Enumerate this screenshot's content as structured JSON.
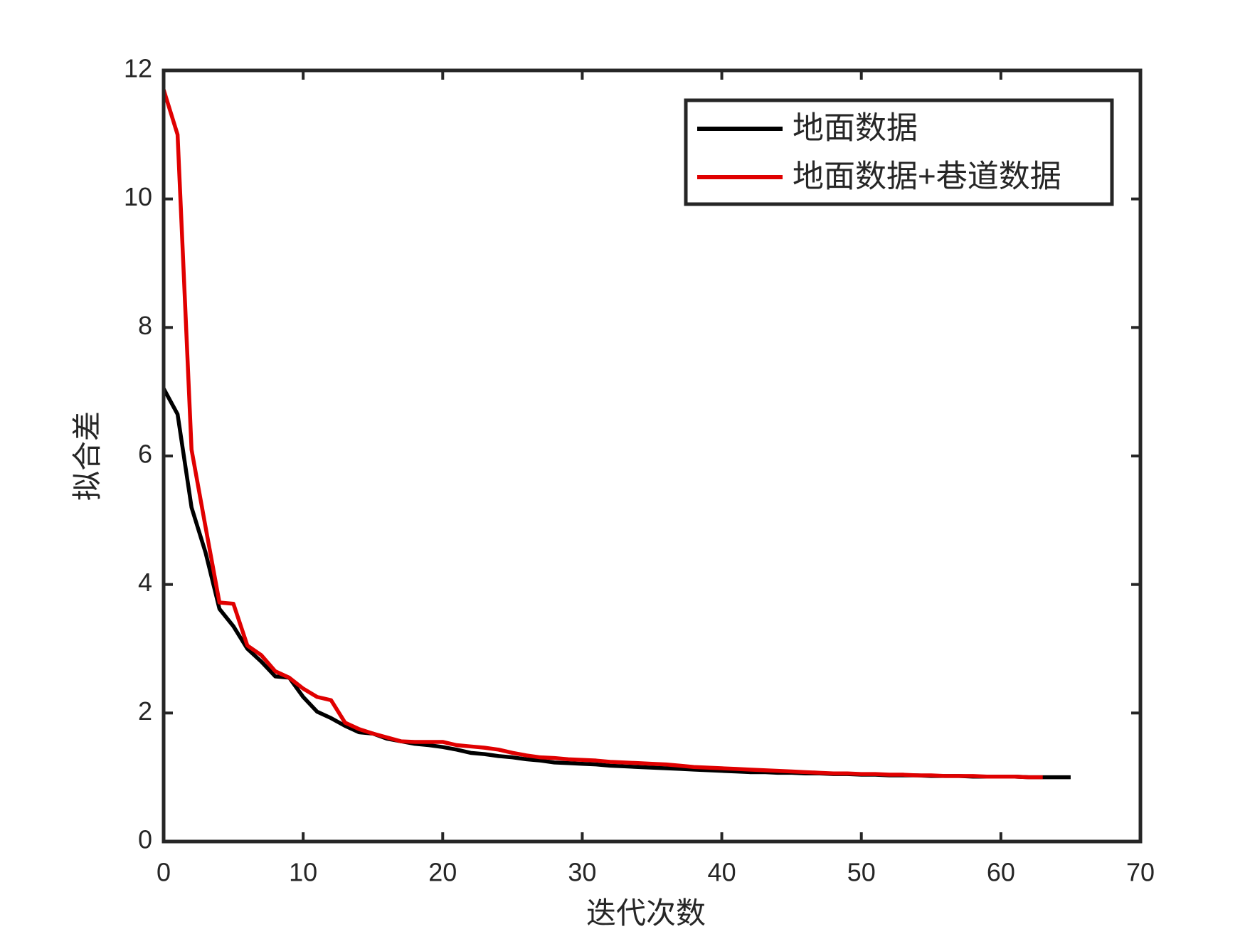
{
  "chart_data": {
    "type": "line",
    "x_label": "迭代次数",
    "y_label": "拟合差",
    "x": [
      0,
      1,
      2,
      3,
      4,
      5,
      6,
      7,
      8,
      9,
      10,
      11,
      12,
      13,
      14,
      15,
      16,
      17,
      18,
      19,
      20,
      21,
      22,
      23,
      24,
      25,
      26,
      27,
      28,
      29,
      30,
      31,
      32,
      33,
      34,
      35,
      36,
      37,
      38,
      39,
      40,
      41,
      42,
      43,
      44,
      45,
      46,
      47,
      48,
      49,
      50,
      51,
      52,
      53,
      54,
      55,
      56,
      57,
      58,
      59,
      60,
      61,
      62,
      63,
      64,
      65
    ],
    "series": [
      {
        "name": "地面数据",
        "color": "#000000",
        "values": [
          7.05,
          6.65,
          5.2,
          4.5,
          3.62,
          3.35,
          3.0,
          2.8,
          2.57,
          2.55,
          2.25,
          2.02,
          1.92,
          1.8,
          1.7,
          1.68,
          1.6,
          1.56,
          1.52,
          1.5,
          1.47,
          1.43,
          1.38,
          1.36,
          1.33,
          1.31,
          1.28,
          1.26,
          1.23,
          1.22,
          1.21,
          1.2,
          1.18,
          1.17,
          1.16,
          1.15,
          1.14,
          1.13,
          1.12,
          1.11,
          1.1,
          1.09,
          1.08,
          1.08,
          1.07,
          1.07,
          1.06,
          1.06,
          1.05,
          1.05,
          1.04,
          1.04,
          1.03,
          1.03,
          1.03,
          1.02,
          1.02,
          1.02,
          1.01,
          1.01,
          1.01,
          1.01,
          1.0,
          1.0,
          1.0,
          1.0
        ]
      },
      {
        "name": "地面数据+巷道数据",
        "color": "#e00000",
        "values": [
          11.7,
          11.0,
          6.1,
          4.9,
          3.72,
          3.7,
          3.05,
          2.9,
          2.65,
          2.55,
          2.38,
          2.25,
          2.2,
          1.85,
          1.75,
          1.68,
          1.62,
          1.56,
          1.55,
          1.55,
          1.55,
          1.5,
          1.48,
          1.46,
          1.43,
          1.38,
          1.34,
          1.31,
          1.3,
          1.28,
          1.27,
          1.26,
          1.24,
          1.23,
          1.22,
          1.21,
          1.2,
          1.18,
          1.16,
          1.15,
          1.14,
          1.13,
          1.12,
          1.11,
          1.1,
          1.09,
          1.08,
          1.07,
          1.06,
          1.06,
          1.05,
          1.05,
          1.04,
          1.04,
          1.03,
          1.03,
          1.02,
          1.02,
          1.02,
          1.01,
          1.01,
          1.01,
          1.0,
          1.0,
          null,
          null
        ]
      }
    ],
    "xlim": [
      0,
      70
    ],
    "xticks": [
      0,
      10,
      20,
      30,
      40,
      50,
      60,
      70
    ],
    "ylim": [
      0,
      12
    ],
    "yticks": [
      0,
      2,
      4,
      6,
      8,
      10,
      12
    ],
    "legend": "upper right",
    "grid": false
  }
}
